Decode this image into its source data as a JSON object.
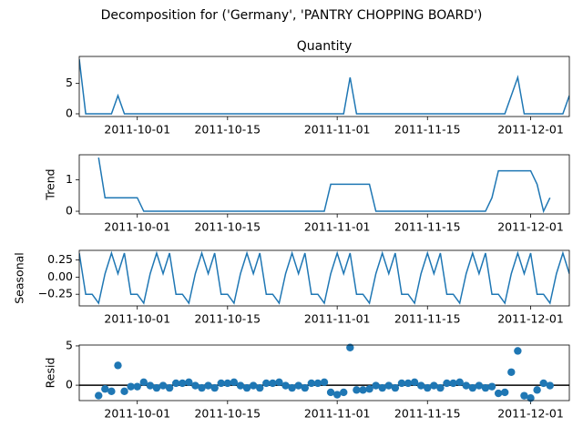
{
  "title": "Decomposition for ('Germany', 'PANTRY CHOPPING BOARD')",
  "chart_data": [
    {
      "type": "line",
      "title": "Quantity",
      "x": [
        "2011-09-22",
        "2011-09-23",
        "2011-09-24",
        "2011-09-25",
        "2011-09-26",
        "2011-09-27",
        "2011-09-28",
        "2011-09-29",
        "2011-09-30",
        "2011-10-01",
        "2011-10-02",
        "2011-10-03",
        "2011-10-04",
        "2011-10-05",
        "2011-10-06",
        "2011-10-07",
        "2011-10-08",
        "2011-10-09",
        "2011-10-10",
        "2011-10-11",
        "2011-10-12",
        "2011-10-13",
        "2011-10-14",
        "2011-10-15",
        "2011-10-16",
        "2011-10-17",
        "2011-10-18",
        "2011-10-19",
        "2011-10-20",
        "2011-10-21",
        "2011-10-22",
        "2011-10-23",
        "2011-10-24",
        "2011-10-25",
        "2011-10-26",
        "2011-10-27",
        "2011-10-28",
        "2011-10-29",
        "2011-10-30",
        "2011-10-31",
        "2011-11-01",
        "2011-11-02",
        "2011-11-03",
        "2011-11-04",
        "2011-11-05",
        "2011-11-06",
        "2011-11-07",
        "2011-11-08",
        "2011-11-09",
        "2011-11-10",
        "2011-11-11",
        "2011-11-12",
        "2011-11-13",
        "2011-11-14",
        "2011-11-15",
        "2011-11-16",
        "2011-11-17",
        "2011-11-18",
        "2011-11-19",
        "2011-11-20",
        "2011-11-21",
        "2011-11-22",
        "2011-11-23",
        "2011-11-24",
        "2011-11-25",
        "2011-11-26",
        "2011-11-27",
        "2011-11-28",
        "2011-11-29",
        "2011-11-30",
        "2011-12-01",
        "2011-12-02",
        "2011-12-03",
        "2011-12-04",
        "2011-12-05",
        "2011-12-06",
        "2011-12-07"
      ],
      "series": [
        {
          "color": "#1f77b4",
          "values": [
            9,
            0,
            0,
            0,
            0,
            0,
            3,
            0,
            0,
            0,
            0,
            0,
            0,
            0,
            0,
            0,
            0,
            0,
            0,
            0,
            0,
            0,
            0,
            0,
            0,
            0,
            0,
            0,
            0,
            0,
            0,
            0,
            0,
            0,
            0,
            0,
            0,
            0,
            0,
            0,
            0,
            0,
            6,
            0,
            0,
            0,
            0,
            0,
            0,
            0,
            0,
            0,
            0,
            0,
            0,
            0,
            0,
            0,
            0,
            0,
            0,
            0,
            0,
            0,
            0,
            0,
            0,
            3,
            6,
            0,
            0,
            0,
            0,
            0,
            0,
            0,
            3
          ]
        }
      ],
      "xlim": [
        "2011-09-22",
        "2011-12-07"
      ],
      "xticks": [
        "2011-10-01",
        "2011-10-15",
        "2011-11-01",
        "2011-11-15",
        "2011-12-01"
      ],
      "ylim": [
        -0.45,
        9.45
      ],
      "yticks": [
        0,
        5
      ]
    },
    {
      "type": "line",
      "ylabel": "Trend",
      "x": [
        "2011-09-22",
        "2011-09-23",
        "2011-09-24",
        "2011-09-25",
        "2011-09-26",
        "2011-09-27",
        "2011-09-28",
        "2011-09-29",
        "2011-09-30",
        "2011-10-01",
        "2011-10-02",
        "2011-10-03",
        "2011-10-04",
        "2011-10-05",
        "2011-10-06",
        "2011-10-07",
        "2011-10-08",
        "2011-10-09",
        "2011-10-10",
        "2011-10-11",
        "2011-10-12",
        "2011-10-13",
        "2011-10-14",
        "2011-10-15",
        "2011-10-16",
        "2011-10-17",
        "2011-10-18",
        "2011-10-19",
        "2011-10-20",
        "2011-10-21",
        "2011-10-22",
        "2011-10-23",
        "2011-10-24",
        "2011-10-25",
        "2011-10-26",
        "2011-10-27",
        "2011-10-28",
        "2011-10-29",
        "2011-10-30",
        "2011-10-31",
        "2011-11-01",
        "2011-11-02",
        "2011-11-03",
        "2011-11-04",
        "2011-11-05",
        "2011-11-06",
        "2011-11-07",
        "2011-11-08",
        "2011-11-09",
        "2011-11-10",
        "2011-11-11",
        "2011-11-12",
        "2011-11-13",
        "2011-11-14",
        "2011-11-15",
        "2011-11-16",
        "2011-11-17",
        "2011-11-18",
        "2011-11-19",
        "2011-11-20",
        "2011-11-21",
        "2011-11-22",
        "2011-11-23",
        "2011-11-24",
        "2011-11-25",
        "2011-11-26",
        "2011-11-27",
        "2011-11-28",
        "2011-11-29",
        "2011-11-30",
        "2011-12-01",
        "2011-12-02",
        "2011-12-03",
        "2011-12-04",
        "2011-12-05",
        "2011-12-06",
        "2011-12-07"
      ],
      "series": [
        {
          "color": "#1f77b4",
          "values": [
            null,
            null,
            null,
            1.71,
            0.43,
            0.43,
            0.43,
            0.43,
            0.43,
            0.43,
            0,
            0,
            0,
            0,
            0,
            0,
            0,
            0,
            0,
            0,
            0,
            0,
            0,
            0,
            0,
            0,
            0,
            0,
            0,
            0,
            0,
            0,
            0,
            0,
            0,
            0,
            0,
            0,
            0,
            0.86,
            0.86,
            0.86,
            0.86,
            0.86,
            0.86,
            0.86,
            0,
            0,
            0,
            0,
            0,
            0,
            0,
            0,
            0,
            0,
            0,
            0,
            0,
            0,
            0,
            0,
            0,
            0,
            0.43,
            1.29,
            1.29,
            1.29,
            1.29,
            1.29,
            1.29,
            0.86,
            0,
            0.43,
            null,
            null,
            null
          ]
        }
      ],
      "xlim": [
        "2011-09-22",
        "2011-12-07"
      ],
      "xticks": [
        "2011-10-01",
        "2011-10-15",
        "2011-11-01",
        "2011-11-15",
        "2011-12-01"
      ],
      "ylim": [
        -0.086,
        1.8
      ],
      "yticks": [
        0,
        1
      ]
    },
    {
      "type": "line",
      "ylabel": "Seasonal",
      "x": [
        "2011-09-22",
        "2011-09-23",
        "2011-09-24",
        "2011-09-25",
        "2011-09-26",
        "2011-09-27",
        "2011-09-28",
        "2011-09-29",
        "2011-09-30",
        "2011-10-01",
        "2011-10-02",
        "2011-10-03",
        "2011-10-04",
        "2011-10-05",
        "2011-10-06",
        "2011-10-07",
        "2011-10-08",
        "2011-10-09",
        "2011-10-10",
        "2011-10-11",
        "2011-10-12",
        "2011-10-13",
        "2011-10-14",
        "2011-10-15",
        "2011-10-16",
        "2011-10-17",
        "2011-10-18",
        "2011-10-19",
        "2011-10-20",
        "2011-10-21",
        "2011-10-22",
        "2011-10-23",
        "2011-10-24",
        "2011-10-25",
        "2011-10-26",
        "2011-10-27",
        "2011-10-28",
        "2011-10-29",
        "2011-10-30",
        "2011-10-31",
        "2011-11-01",
        "2011-11-02",
        "2011-11-03",
        "2011-11-04",
        "2011-11-05",
        "2011-11-06",
        "2011-11-07",
        "2011-11-08",
        "2011-11-09",
        "2011-11-10",
        "2011-11-11",
        "2011-11-12",
        "2011-11-13",
        "2011-11-14",
        "2011-11-15",
        "2011-11-16",
        "2011-11-17",
        "2011-11-18",
        "2011-11-19",
        "2011-11-20",
        "2011-11-21",
        "2011-11-22",
        "2011-11-23",
        "2011-11-24",
        "2011-11-25",
        "2011-11-26",
        "2011-11-27",
        "2011-11-28",
        "2011-11-29",
        "2011-11-30",
        "2011-12-01",
        "2011-12-02",
        "2011-12-03",
        "2011-12-04",
        "2011-12-05",
        "2011-12-06",
        "2011-12-07"
      ],
      "series": [
        {
          "color": "#1f77b4",
          "values": [
            0.35,
            -0.25,
            -0.25,
            -0.38,
            0.05,
            0.35,
            0.05,
            0.35,
            -0.25,
            -0.25,
            -0.38,
            0.05,
            0.35,
            0.05,
            0.35,
            -0.25,
            -0.25,
            -0.38,
            0.05,
            0.35,
            0.05,
            0.35,
            -0.25,
            -0.25,
            -0.38,
            0.05,
            0.35,
            0.05,
            0.35,
            -0.25,
            -0.25,
            -0.38,
            0.05,
            0.35,
            0.05,
            0.35,
            -0.25,
            -0.25,
            -0.38,
            0.05,
            0.35,
            0.05,
            0.35,
            -0.25,
            -0.25,
            -0.38,
            0.05,
            0.35,
            0.05,
            0.35,
            -0.25,
            -0.25,
            -0.38,
            0.05,
            0.35,
            0.05,
            0.35,
            -0.25,
            -0.25,
            -0.38,
            0.05,
            0.35,
            0.05,
            0.35,
            -0.25,
            -0.25,
            -0.38,
            0.05,
            0.35,
            0.05,
            0.35,
            -0.25,
            -0.25,
            -0.38,
            0.05,
            0.35,
            0.05
          ]
        }
      ],
      "xlim": [
        "2011-09-22",
        "2011-12-07"
      ],
      "xticks": [
        "2011-10-01",
        "2011-10-15",
        "2011-11-01",
        "2011-11-15",
        "2011-12-01"
      ],
      "ylim": [
        -0.42,
        0.39
      ],
      "yticks": [
        {
          "value": -0.25,
          "label": "−0.25"
        },
        {
          "value": 0,
          "label": "0.00"
        },
        {
          "value": 0.25,
          "label": "0.25"
        }
      ]
    },
    {
      "type": "scatter",
      "ylabel": "Resid",
      "hline": 0,
      "x": [
        "2011-09-22",
        "2011-09-23",
        "2011-09-24",
        "2011-09-25",
        "2011-09-26",
        "2011-09-27",
        "2011-09-28",
        "2011-09-29",
        "2011-09-30",
        "2011-10-01",
        "2011-10-02",
        "2011-10-03",
        "2011-10-04",
        "2011-10-05",
        "2011-10-06",
        "2011-10-07",
        "2011-10-08",
        "2011-10-09",
        "2011-10-10",
        "2011-10-11",
        "2011-10-12",
        "2011-10-13",
        "2011-10-14",
        "2011-10-15",
        "2011-10-16",
        "2011-10-17",
        "2011-10-18",
        "2011-10-19",
        "2011-10-20",
        "2011-10-21",
        "2011-10-22",
        "2011-10-23",
        "2011-10-24",
        "2011-10-25",
        "2011-10-26",
        "2011-10-27",
        "2011-10-28",
        "2011-10-29",
        "2011-10-30",
        "2011-10-31",
        "2011-11-01",
        "2011-11-02",
        "2011-11-03",
        "2011-11-04",
        "2011-11-05",
        "2011-11-06",
        "2011-11-07",
        "2011-11-08",
        "2011-11-09",
        "2011-11-10",
        "2011-11-11",
        "2011-11-12",
        "2011-11-13",
        "2011-11-14",
        "2011-11-15",
        "2011-11-16",
        "2011-11-17",
        "2011-11-18",
        "2011-11-19",
        "2011-11-20",
        "2011-11-21",
        "2011-11-22",
        "2011-11-23",
        "2011-11-24",
        "2011-11-25",
        "2011-11-26",
        "2011-11-27",
        "2011-11-28",
        "2011-11-29",
        "2011-11-30",
        "2011-12-01",
        "2011-12-02",
        "2011-12-03",
        "2011-12-04",
        "2011-12-05",
        "2011-12-06",
        "2011-12-07"
      ],
      "series": [
        {
          "color": "#1f77b4",
          "values": [
            null,
            null,
            null,
            -1.33,
            -0.48,
            -0.78,
            2.52,
            -0.78,
            -0.18,
            -0.18,
            0.38,
            -0.05,
            -0.35,
            -0.05,
            -0.35,
            0.25,
            0.25,
            0.38,
            -0.05,
            -0.35,
            -0.05,
            -0.35,
            0.25,
            0.25,
            0.38,
            -0.05,
            -0.35,
            -0.05,
            -0.35,
            0.25,
            0.25,
            0.38,
            -0.05,
            -0.35,
            -0.05,
            -0.35,
            0.25,
            0.25,
            0.38,
            -0.91,
            -1.21,
            -0.91,
            4.79,
            -0.61,
            -0.61,
            -0.48,
            -0.05,
            -0.35,
            -0.05,
            -0.35,
            0.25,
            0.25,
            0.38,
            -0.05,
            -0.35,
            -0.05,
            -0.35,
            0.25,
            0.25,
            0.38,
            -0.05,
            -0.35,
            -0.05,
            -0.35,
            -0.18,
            -1.04,
            -0.91,
            1.66,
            4.36,
            -1.34,
            -1.64,
            -0.61,
            0.25,
            -0.05,
            null,
            null,
            null
          ]
        }
      ],
      "xlim": [
        "2011-09-22",
        "2011-12-07"
      ],
      "xticks": [
        "2011-10-01",
        "2011-10-15",
        "2011-11-01",
        "2011-11-15",
        "2011-12-01"
      ],
      "ylim": [
        -1.96,
        5.11
      ],
      "yticks": [
        0,
        5
      ]
    }
  ]
}
